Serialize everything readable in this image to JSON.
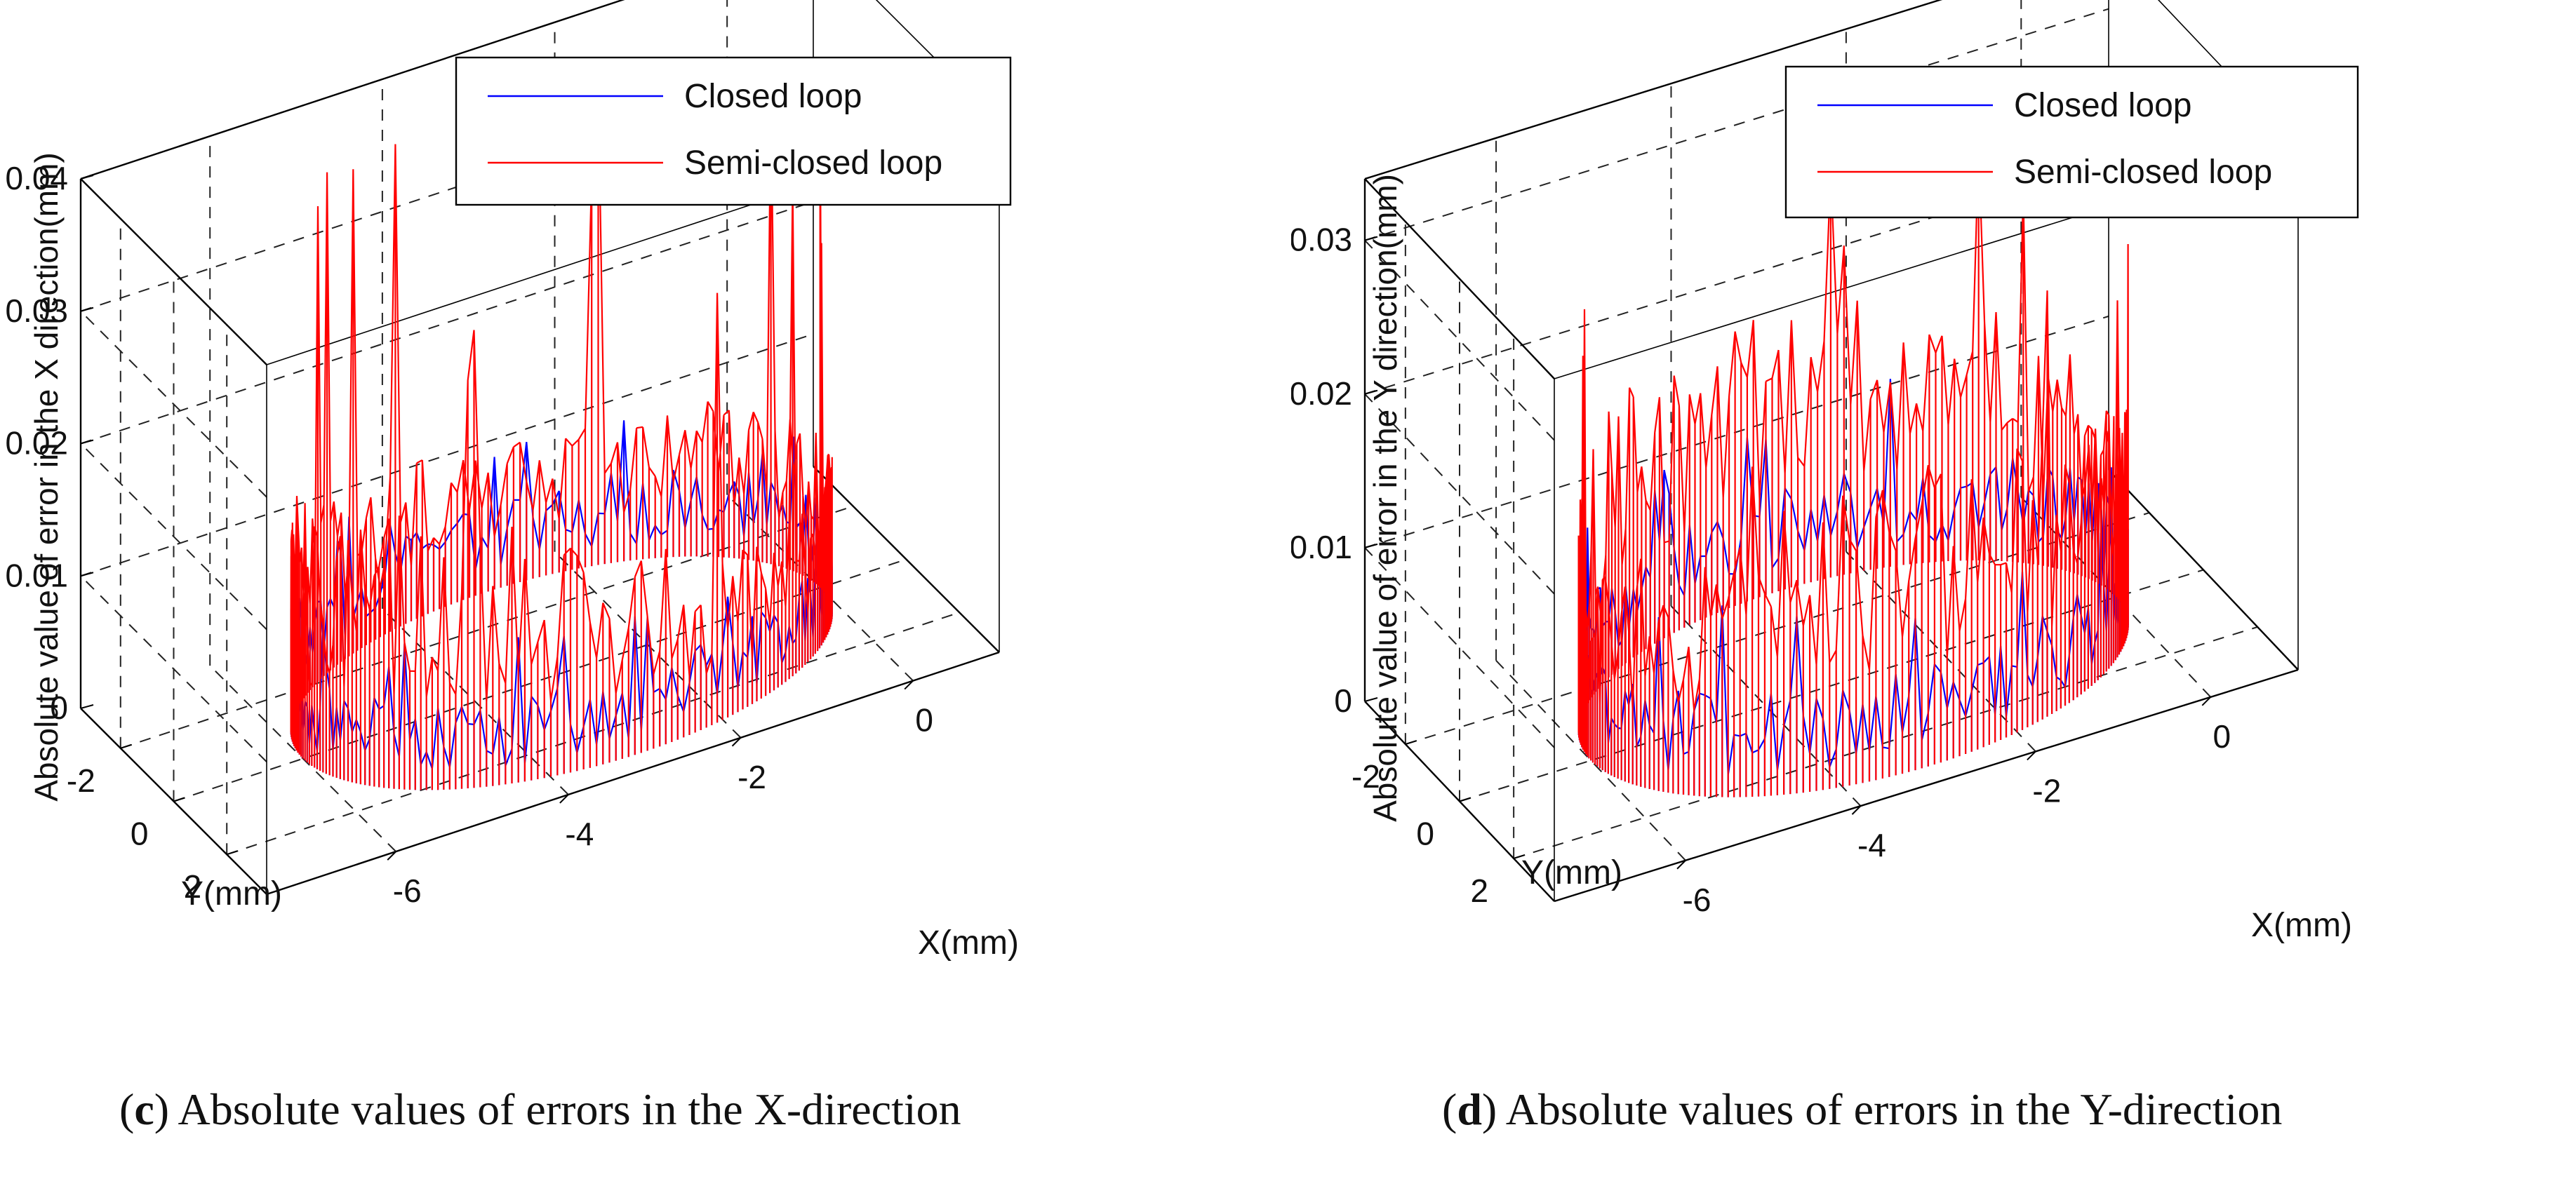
{
  "chart_data": [
    {
      "type": "3d-line",
      "panel": "c",
      "zlabel": "Absolute value of error in the X direction(mm)",
      "xlabel": "X(mm)",
      "ylabel": "Y(mm)",
      "x_ticks": [
        "0",
        "-2",
        "-4",
        "-6"
      ],
      "y_ticks": [
        "2",
        "0",
        "-2"
      ],
      "z_ticks": [
        "0",
        "0.01",
        "0.02",
        "0.03",
        "0.04"
      ],
      "xlim": [
        -7.5,
        1
      ],
      "ylim": [
        -3.5,
        3.5
      ],
      "zlim": [
        0,
        0.04
      ],
      "path": {
        "shape": "circle",
        "center_x": -3,
        "center_y": 0,
        "radius": 3
      },
      "legend": [
        "Closed loop",
        "Semi-closed loop"
      ],
      "series": [
        {
          "name": "Closed loop",
          "color": "#0000ff",
          "typical_error_mm": 0.004,
          "max_error_mm": 0.011
        },
        {
          "name": "Semi-closed loop",
          "color": "#ff0000",
          "typical_error_mm": 0.012,
          "max_error_mm": 0.038
        }
      ],
      "caption_letter": "c",
      "caption": "Absolute values of errors in the X-direction"
    },
    {
      "type": "3d-line",
      "panel": "d",
      "zlabel": "Absolute value of error in the Y direction(mm)",
      "xlabel": "X(mm)",
      "ylabel": "Y(mm)",
      "x_ticks": [
        "0",
        "-2",
        "-4",
        "-6"
      ],
      "y_ticks": [
        "2",
        "0",
        "-2"
      ],
      "z_ticks": [
        "0",
        "0.01",
        "0.02",
        "0.03"
      ],
      "xlim": [
        -7.5,
        1
      ],
      "ylim": [
        -3.5,
        3.5
      ],
      "zlim": [
        0,
        0.034
      ],
      "path": {
        "shape": "circle",
        "center_x": -3,
        "center_y": 0,
        "radius": 3
      },
      "legend": [
        "Closed loop",
        "Semi-closed loop"
      ],
      "series": [
        {
          "name": "Closed loop",
          "color": "#0000ff",
          "typical_error_mm": 0.004,
          "max_error_mm": 0.013
        },
        {
          "name": "Semi-closed loop",
          "color": "#ff0000",
          "typical_error_mm": 0.011,
          "max_error_mm": 0.028
        }
      ],
      "caption_letter": "d",
      "caption": "Absolute values of errors in the Y-direction"
    }
  ]
}
